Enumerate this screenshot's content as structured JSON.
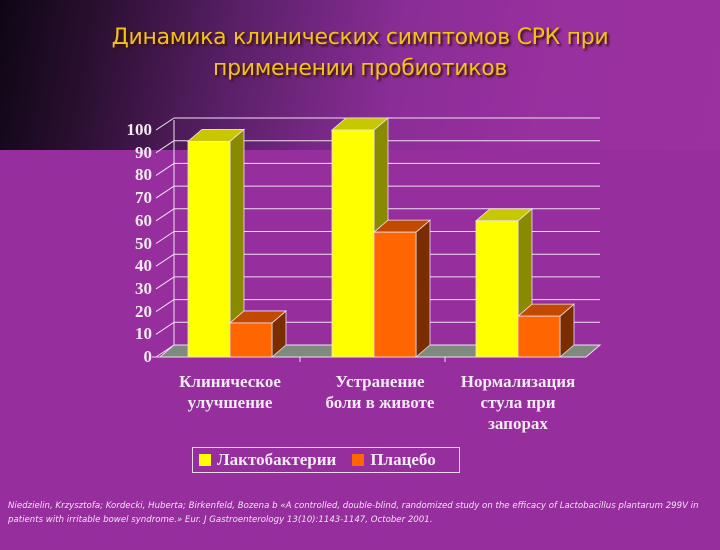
{
  "title": "Динамика клинических симптомов СРК при применении пробиотиков",
  "title_lines": [
    "Динамика клинических симптомов СРК при",
    "применении пробиотиков"
  ],
  "chart_data": {
    "type": "bar",
    "title": "Динамика клинических симптомов СРК при применении пробиотиков",
    "categories": [
      "Клиническое улучшение",
      "Устранение боли в животе",
      "Нормализация стула при запорах"
    ],
    "category_lines": [
      [
        "Клиническое",
        "улучшение"
      ],
      [
        "Устранение",
        "боли в животе"
      ],
      [
        "Нормализация",
        "стула при",
        "запорах"
      ]
    ],
    "series": [
      {
        "name": "Лактобактерии",
        "color": "#ffff00",
        "values": [
          95,
          100,
          60
        ]
      },
      {
        "name": "Плацебо",
        "color": "#ff6600",
        "values": [
          15,
          55,
          18
        ]
      }
    ],
    "xlabel": "",
    "ylabel": "",
    "ylim": [
      0,
      100
    ],
    "yticks": [
      0,
      10,
      20,
      30,
      40,
      50,
      60,
      70,
      80,
      90,
      100
    ],
    "grid": true,
    "legend_position": "bottom",
    "style": "3d-column"
  },
  "legend": [
    {
      "label": "Лактобактерии",
      "color": "#ffff00"
    },
    {
      "label": "Плацебо",
      "color": "#ff6600"
    }
  ],
  "citation": "Niedzielin, Krzysztofa; Kordecki, Huberta; Birkenfeld, Bozena b «A controlled, double-blind, randomized study on the efficacy of Lactobacillus plantarum 299V in patients with irritable bowel syndrome.» Eur. J Gastroenterology 13(10):1143-1147, October 2001."
}
